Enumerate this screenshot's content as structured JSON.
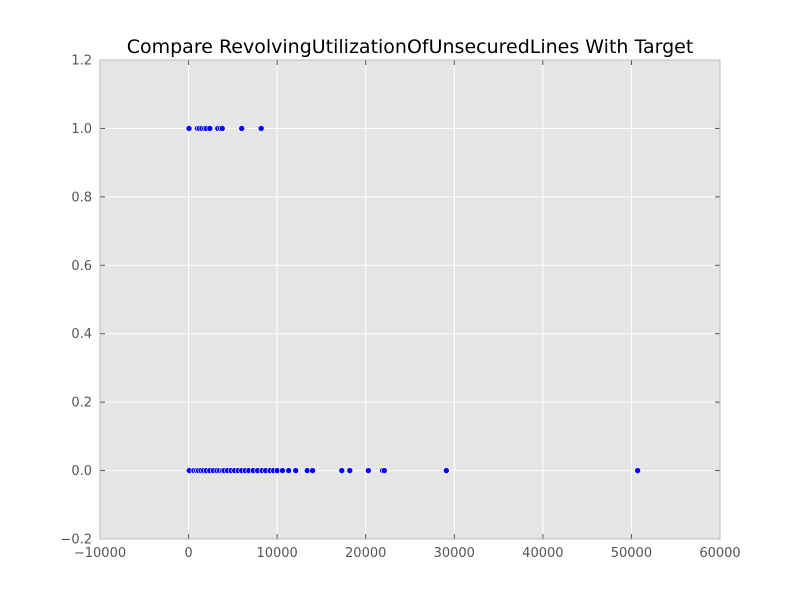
{
  "chart_data": {
    "type": "scatter",
    "title": "Compare RevolvingUtilizationOfUnsecuredLines With Target",
    "xlabel": "",
    "ylabel": "",
    "xlim": [
      -10000,
      60000
    ],
    "ylim": [
      -0.2,
      1.2
    ],
    "x_ticks": [
      -10000,
      0,
      10000,
      20000,
      30000,
      40000,
      50000,
      60000
    ],
    "x_tick_labels": [
      "−10000",
      "0",
      "10000",
      "20000",
      "30000",
      "40000",
      "50000",
      "60000"
    ],
    "y_ticks": [
      -0.2,
      0.0,
      0.2,
      0.4,
      0.6,
      0.8,
      1.0,
      1.2
    ],
    "y_tick_labels": [
      "−0.2",
      "0.0",
      "0.2",
      "0.4",
      "0.6",
      "0.8",
      "1.0",
      "1.2"
    ],
    "grid": true,
    "colors": {
      "background": "#e5e5e5",
      "grid": "#ffffff",
      "marker": "#0000ff",
      "marker_edge": "#ffffff"
    },
    "series": [
      {
        "x": [
          0,
          50,
          1000,
          1200,
          1500,
          1800,
          2000,
          2400,
          3300,
          3600,
          3800,
          6000,
          8200,
          0,
          100,
          600,
          900,
          1100,
          1400,
          1700,
          2000,
          2400,
          2800,
          3200,
          3500,
          3800,
          4000,
          4400,
          4800,
          5200,
          5600,
          6000,
          6400,
          6800,
          7300,
          7800,
          8300,
          8700,
          9200,
          9600,
          10000,
          10600,
          11300,
          12100,
          13400,
          14000,
          17300,
          18200,
          20300,
          21900,
          22100,
          29100,
          50700
        ],
        "y": [
          1,
          1,
          1,
          1,
          1,
          1,
          1,
          1,
          1,
          1,
          1,
          1,
          1,
          0,
          0,
          0,
          0,
          0,
          0,
          0,
          0,
          0,
          0,
          0,
          0,
          0,
          0,
          0,
          0,
          0,
          0,
          0,
          0,
          0,
          0,
          0,
          0,
          0,
          0,
          0,
          0,
          0,
          0,
          0,
          0,
          0,
          0,
          0,
          0,
          0,
          0,
          0,
          0
        ]
      }
    ]
  }
}
